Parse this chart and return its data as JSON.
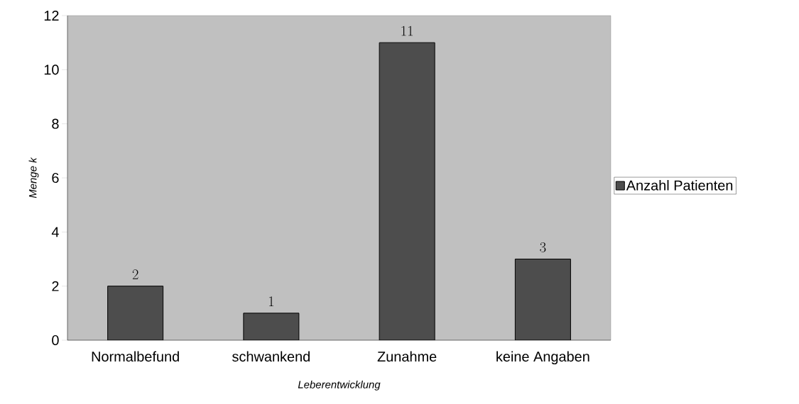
{
  "chart_data": {
    "type": "bar",
    "xlabel": "Leberentwicklung",
    "ylabel": "Menge        k",
    "categories": [
      "Normalbefund",
      "schwankend",
      "Zunahme",
      "keine Angaben"
    ],
    "series": [
      {
        "name": "Anzahl Patienten",
        "color": "#4d4d4d",
        "values": [
          2,
          1,
          11,
          3
        ]
      }
    ],
    "ylim": [
      0,
      12
    ],
    "yticks": [
      0,
      2,
      4,
      6,
      8,
      10,
      12
    ],
    "data_labels": true,
    "legend": "right"
  }
}
